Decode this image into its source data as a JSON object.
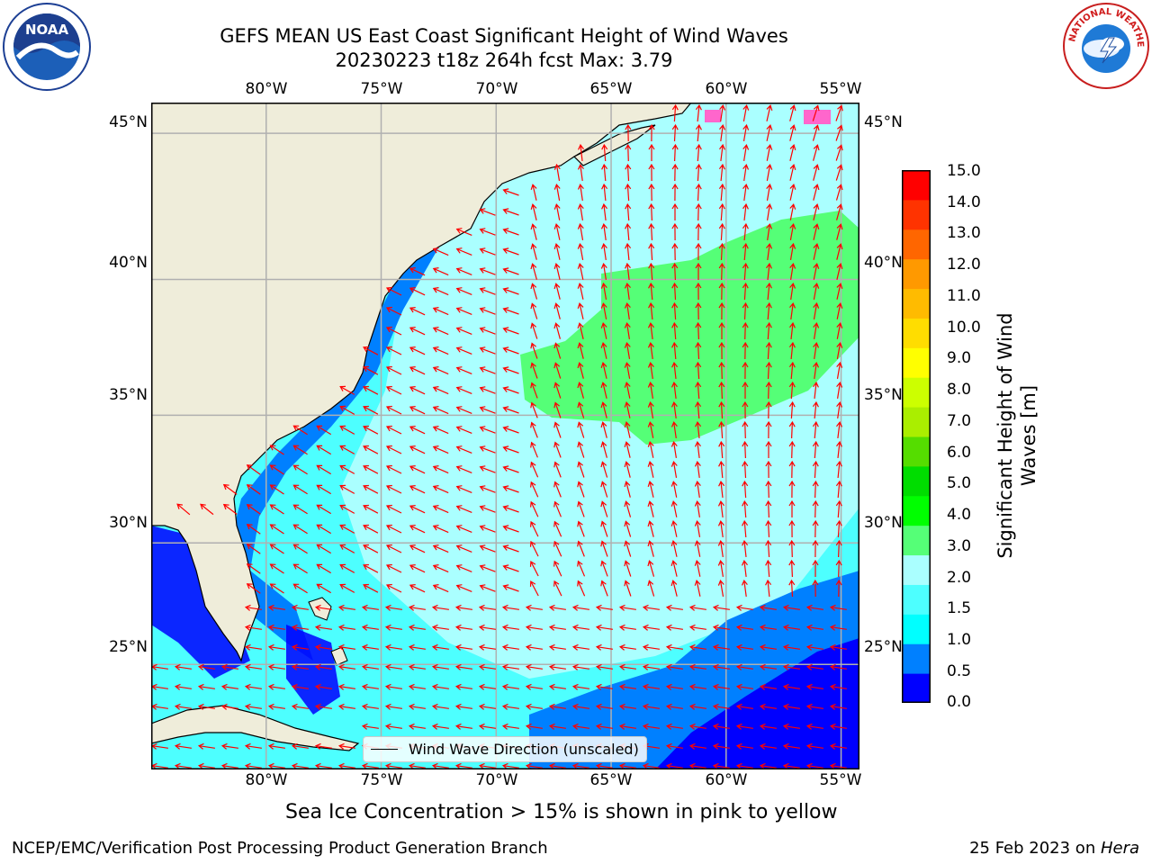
{
  "title": {
    "line1": "GEFS MEAN US East Coast Significant Height of Wind Waves",
    "line2": "20230223 t18z 264h fcst   Max: 3.79"
  },
  "logos": {
    "left": "NOAA",
    "right": "NATIONAL WEATHER SERVICE"
  },
  "map": {
    "lon_ticks": [
      "80°W",
      "75°W",
      "70°W",
      "65°W",
      "60°W",
      "55°W"
    ],
    "lat_ticks": [
      "45°N",
      "40°N",
      "35°N",
      "30°N",
      "25°N"
    ],
    "extent": {
      "lon_min": -85,
      "lon_max": -54.2,
      "lat_min": 20.5,
      "lat_max": 46
    },
    "legend_label": "Wind Wave Direction (unscaled)",
    "arrow_color": "#ff0000",
    "land_color": "#efedda"
  },
  "colorbar": {
    "label": "Significant Height of Wind Waves [m]",
    "ticks": [
      "15.0",
      "14.0",
      "13.0",
      "12.0",
      "11.0",
      "10.0",
      "9.0",
      "8.0",
      "7.0",
      "6.0",
      "5.0",
      "4.0",
      "3.0",
      "2.0",
      "1.5",
      "1.0",
      "0.5",
      "0.0"
    ],
    "colors_bottom_to_top": [
      "#0000ff",
      "#0080ff",
      "#00ffff",
      "#4dffff",
      "#aaffff",
      "#55ff77",
      "#00ff00",
      "#00dd00",
      "#55dd00",
      "#aaee00",
      "#ccff00",
      "#ffff00",
      "#ffdd00",
      "#ffbb00",
      "#ff9900",
      "#ff6600",
      "#ff3300",
      "#ff0000"
    ]
  },
  "note": "Sea Ice Concentration > 15% is shown in pink to yellow",
  "footer": {
    "left": "NCEP/EMC/Verification Post Processing Product Generation Branch",
    "right_date": "25 Feb 2023 on ",
    "right_host": "Hera"
  }
}
